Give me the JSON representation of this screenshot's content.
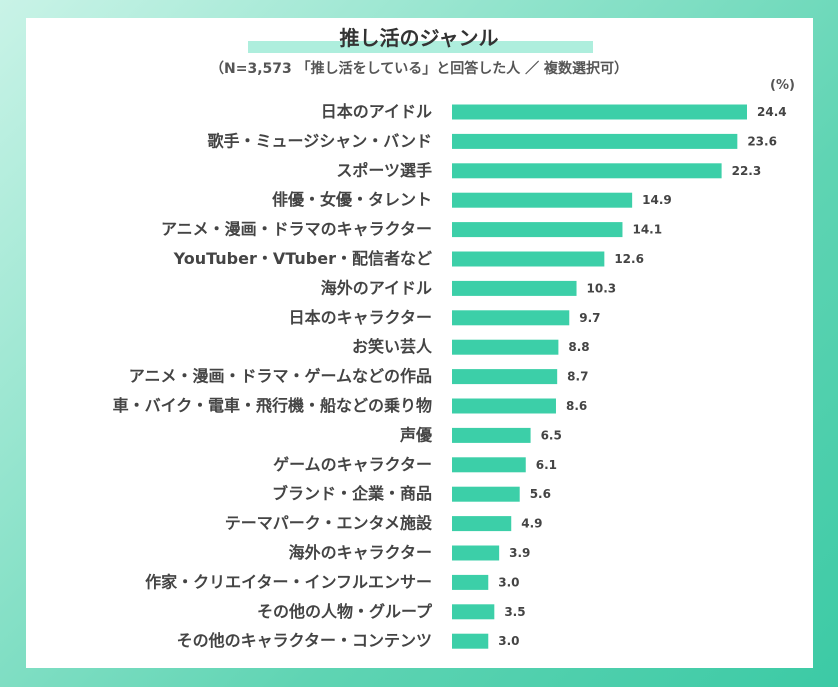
{
  "chart_data": {
    "type": "bar",
    "orientation": "horizontal",
    "title": "推し活のジャンル",
    "subtitle": "（N=3,573 「推し活をしている」と回答した人 ／ 複数選択可）",
    "unit": "(%)",
    "categories": [
      "日本のアイドル",
      "歌手・ミュージシャン・バンド",
      "スポーツ選手",
      "俳優・女優・タレント",
      "アニメ・漫画・ドラマのキャラクター",
      "YouTuber・VTuber・配信者など",
      "海外のアイドル",
      "日本のキャラクター",
      "お笑い芸人",
      "アニメ・漫画・ドラマ・ゲームなどの作品",
      "車・バイク・電車・飛行機・船などの乗り物",
      "声優",
      "ゲームのキャラクター",
      "ブランド・企業・商品",
      "テーマパーク・エンタメ施設",
      "海外のキャラクター",
      "作家・クリエイター・インフルエンサー",
      "その他の人物・グループ",
      "その他のキャラクター・コンテンツ"
    ],
    "values": [
      24.4,
      23.6,
      22.3,
      14.9,
      14.1,
      12.6,
      10.3,
      9.7,
      8.8,
      8.7,
      8.6,
      6.5,
      6.1,
      5.6,
      4.9,
      3.9,
      3.0,
      3.5,
      3.0
    ],
    "value_labels": [
      "24.4",
      "23.6",
      "22.3",
      "14.9",
      "14.1",
      "12.6",
      "10.3",
      "9.7",
      "8.8",
      "8.7",
      "8.6",
      "6.5",
      "6.1",
      "5.6",
      "4.9",
      "3.9",
      "3.0",
      "3.5",
      "3.0"
    ],
    "xlim": [
      0,
      24.4
    ],
    "grid": false,
    "legend": "none",
    "bar_color": "#3ccfa8",
    "accent_color": "#aeeedd"
  }
}
